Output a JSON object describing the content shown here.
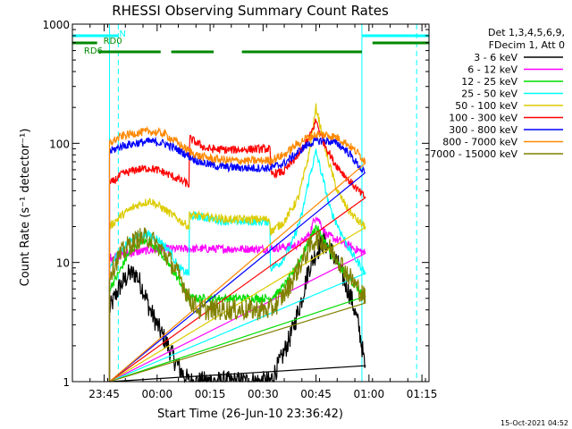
{
  "chart_data": {
    "type": "line",
    "title": "RHESSI Observing Summary Count Rates",
    "xlabel": "Start Time (26-Jun-10 23:36:42)",
    "ylabel": "Count Rate (s⁻¹ detector⁻¹)",
    "y_scale": "log",
    "ylim": [
      1,
      1000
    ],
    "xlim_minutes_from_2336": [
      0,
      101
    ],
    "x_ticks": [
      {
        "label": "23:45",
        "t": 9
      },
      {
        "label": "00:00",
        "t": 24
      },
      {
        "label": "00:15",
        "t": 39
      },
      {
        "label": "00:30",
        "t": 54
      },
      {
        "label": "00:45",
        "t": 69
      },
      {
        "label": "01:00",
        "t": 84
      },
      {
        "label": "01:15",
        "t": 99
      }
    ],
    "y_ticks": [
      {
        "label": "1",
        "v": 1
      },
      {
        "label": "10",
        "v": 10
      },
      {
        "label": "100",
        "v": 100
      },
      {
        "label": "1000",
        "v": 1000
      }
    ],
    "legend_header": [
      "Det 1,3,4,5,6,9,",
      "FDecim 1, Att 0"
    ],
    "legend_position": "right",
    "series": [
      {
        "name": "3 - 6 keV",
        "color": "#000000",
        "points": [
          [
            10.5,
            4
          ],
          [
            13,
            6
          ],
          [
            16,
            8
          ],
          [
            18,
            8
          ],
          [
            20,
            6
          ],
          [
            22,
            4
          ],
          [
            24,
            3
          ],
          [
            27,
            2
          ],
          [
            29,
            1.5
          ],
          [
            31,
            1.2
          ],
          [
            33,
            1
          ],
          [
            40,
            1
          ],
          [
            56,
            1
          ],
          [
            59,
            1.5
          ],
          [
            62,
            2.5
          ],
          [
            65,
            5
          ],
          [
            67,
            9
          ],
          [
            69,
            12
          ],
          [
            71,
            15
          ],
          [
            73,
            13
          ],
          [
            75,
            10
          ],
          [
            77,
            7
          ],
          [
            79,
            5
          ],
          [
            81,
            3
          ],
          [
            82,
            2
          ],
          [
            83,
            1.2
          ]
        ]
      },
      {
        "name": "6 - 12 keV",
        "color": "#ff00ff",
        "points": [
          [
            10.5,
            11
          ],
          [
            20,
            12.5
          ],
          [
            28,
            13
          ],
          [
            36,
            13
          ],
          [
            44,
            13
          ],
          [
            52,
            13
          ],
          [
            56,
            13
          ],
          [
            60,
            13.5
          ],
          [
            64,
            14
          ],
          [
            67,
            17
          ],
          [
            69,
            25
          ],
          [
            70,
            22
          ],
          [
            72,
            17
          ],
          [
            76,
            15
          ],
          [
            80,
            13
          ],
          [
            83,
            12
          ]
        ]
      },
      {
        "name": "12 - 25 keV",
        "color": "#00dd00",
        "points": [
          [
            10.5,
            6
          ],
          [
            13,
            8
          ],
          [
            16,
            12
          ],
          [
            19,
            15
          ],
          [
            22,
            15
          ],
          [
            25,
            12
          ],
          [
            28,
            9
          ],
          [
            31,
            6.5
          ],
          [
            33,
            5
          ],
          [
            36,
            5
          ],
          [
            48,
            5
          ],
          [
            56,
            5
          ],
          [
            58,
            5.5
          ],
          [
            61,
            7
          ],
          [
            64,
            10
          ],
          [
            67,
            15
          ],
          [
            69,
            20
          ],
          [
            71,
            16
          ],
          [
            73,
            12
          ],
          [
            76,
            9
          ],
          [
            79,
            7
          ],
          [
            82,
            5.5
          ],
          [
            83,
            5
          ]
        ]
      },
      {
        "name": "25 - 50 keV",
        "color": "#00ffff",
        "points": [
          [
            10.5,
            9
          ],
          [
            13,
            12
          ],
          [
            16,
            15
          ],
          [
            19,
            17
          ],
          [
            22,
            17
          ],
          [
            25,
            15
          ],
          [
            28,
            12
          ],
          [
            30,
            9
          ],
          [
            33,
            8
          ],
          [
            33.1,
            25
          ],
          [
            44,
            22
          ],
          [
            56,
            22
          ],
          [
            56.1,
            9
          ],
          [
            59,
            10
          ],
          [
            62,
            14
          ],
          [
            65,
            25
          ],
          [
            67,
            50
          ],
          [
            69,
            85
          ],
          [
            71,
            50
          ],
          [
            73,
            28
          ],
          [
            76,
            18
          ],
          [
            79,
            12
          ],
          [
            82,
            9
          ],
          [
            83,
            8
          ]
        ]
      },
      {
        "name": "50 - 100 keV",
        "color": "#ddcc00",
        "points": [
          [
            10.5,
            20
          ],
          [
            14,
            25
          ],
          [
            18,
            30
          ],
          [
            22,
            33
          ],
          [
            26,
            28
          ],
          [
            30,
            23
          ],
          [
            33,
            20
          ],
          [
            33.1,
            25
          ],
          [
            44,
            23
          ],
          [
            56,
            23
          ],
          [
            56.1,
            18
          ],
          [
            60,
            22
          ],
          [
            64,
            35
          ],
          [
            67,
            80
          ],
          [
            69,
            200
          ],
          [
            70,
            150
          ],
          [
            72,
            80
          ],
          [
            75,
            40
          ],
          [
            78,
            28
          ],
          [
            81,
            22
          ],
          [
            83,
            20
          ]
        ]
      },
      {
        "name": "100 - 300 keV",
        "color": "#ff0000",
        "points": [
          [
            10.5,
            45
          ],
          [
            14,
            55
          ],
          [
            18,
            60
          ],
          [
            22,
            62
          ],
          [
            26,
            57
          ],
          [
            30,
            50
          ],
          [
            33,
            45
          ],
          [
            33.2,
            110
          ],
          [
            38,
            90
          ],
          [
            44,
            88
          ],
          [
            56,
            90
          ],
          [
            56.2,
            55
          ],
          [
            60,
            58
          ],
          [
            64,
            80
          ],
          [
            67,
            110
          ],
          [
            69,
            155
          ],
          [
            71,
            105
          ],
          [
            74,
            70
          ],
          [
            78,
            50
          ],
          [
            81,
            40
          ],
          [
            83,
            35
          ]
        ]
      },
      {
        "name": "300 - 800 keV",
        "color": "#0000ff",
        "points": [
          [
            10.5,
            85
          ],
          [
            14,
            95
          ],
          [
            18,
            100
          ],
          [
            22,
            104
          ],
          [
            26,
            100
          ],
          [
            30,
            88
          ],
          [
            33,
            78
          ],
          [
            36,
            70
          ],
          [
            40,
            65
          ],
          [
            44,
            63
          ],
          [
            50,
            62
          ],
          [
            56,
            62
          ],
          [
            60,
            68
          ],
          [
            63,
            80
          ],
          [
            66,
            95
          ],
          [
            69,
            105
          ],
          [
            72,
            105
          ],
          [
            75,
            100
          ],
          [
            78,
            85
          ],
          [
            81,
            65
          ],
          [
            83,
            55
          ]
        ]
      },
      {
        "name": "800 - 7000 keV",
        "color": "#ff8800",
        "points": [
          [
            10.5,
            100
          ],
          [
            14,
            115
          ],
          [
            18,
            122
          ],
          [
            22,
            126
          ],
          [
            26,
            120
          ],
          [
            30,
            100
          ],
          [
            33,
            86
          ],
          [
            36,
            78
          ],
          [
            40,
            74
          ],
          [
            44,
            72
          ],
          [
            50,
            71
          ],
          [
            56,
            72
          ],
          [
            60,
            80
          ],
          [
            63,
            95
          ],
          [
            66,
            110
          ],
          [
            69,
            118
          ],
          [
            72,
            118
          ],
          [
            75,
            112
          ],
          [
            78,
            98
          ],
          [
            81,
            82
          ],
          [
            83,
            70
          ]
        ]
      },
      {
        "name": "7000 - 15000 keV",
        "color": "#808000",
        "points": [
          [
            10.5,
            8
          ],
          [
            13,
            11
          ],
          [
            16,
            14
          ],
          [
            19,
            16
          ],
          [
            22,
            16
          ],
          [
            25,
            13
          ],
          [
            28,
            10
          ],
          [
            31,
            7
          ],
          [
            33,
            5
          ],
          [
            36,
            4
          ],
          [
            48,
            4
          ],
          [
            56,
            4
          ],
          [
            58,
            4.5
          ],
          [
            61,
            6
          ],
          [
            64,
            9
          ],
          [
            67,
            13
          ],
          [
            69,
            16
          ],
          [
            72,
            14
          ],
          [
            75,
            11
          ],
          [
            78,
            8
          ],
          [
            81,
            6
          ],
          [
            83,
            5
          ]
        ]
      }
    ],
    "status_bars": [
      {
        "name": "N",
        "color": "#00ffff",
        "segments": [
          [
            0,
            13
          ],
          [
            82,
            101
          ]
        ]
      },
      {
        "name": "RD0",
        "color": "#008800",
        "segments": [
          [
            0,
            7
          ],
          [
            85,
            101
          ]
        ]
      },
      {
        "name": "RD6",
        "color": "#008800",
        "segments": [
          [
            7.5,
            25
          ],
          [
            28,
            40
          ],
          [
            48,
            82
          ]
        ]
      }
    ],
    "vertical_markers": [
      {
        "t": 10.5,
        "style": "solid",
        "color": "#00ffff"
      },
      {
        "t": 13,
        "style": "dashed",
        "color": "#00ffff"
      },
      {
        "t": 82,
        "style": "solid",
        "color": "#00ffff"
      },
      {
        "t": 97.5,
        "style": "dashed",
        "color": "#00ffff"
      }
    ],
    "timestamp": "15-Oct-2021 04:52"
  }
}
